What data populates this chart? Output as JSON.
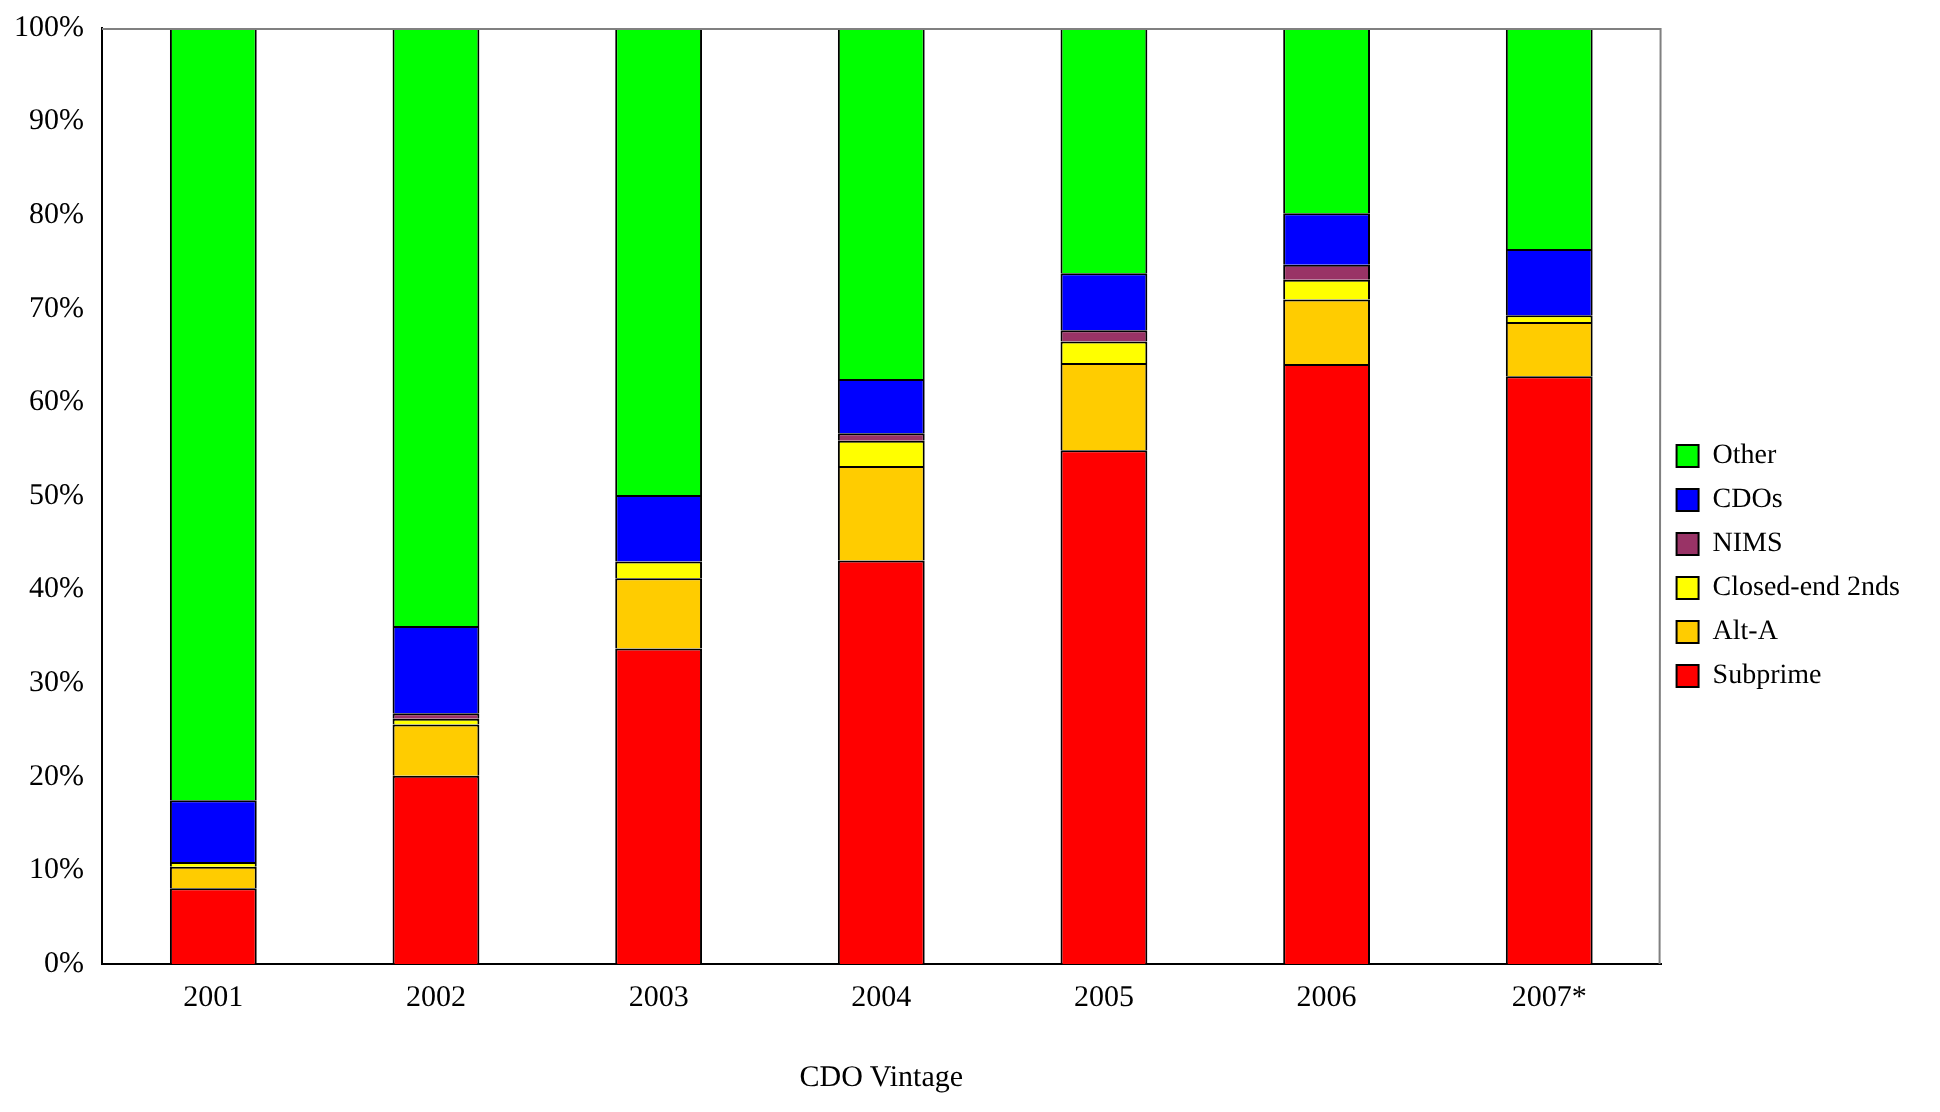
{
  "chart_data": {
    "type": "bar",
    "stacked": true,
    "xlabel": "CDO Vintage",
    "categories": [
      "2001",
      "2002",
      "2003",
      "2004",
      "2005",
      "2006",
      "2007*"
    ],
    "series": [
      {
        "name": "Subprime",
        "color": "#ff0000",
        "values": [
          8.1,
          20.1,
          33.7,
          43.1,
          54.9,
          64.1,
          62.8
        ]
      },
      {
        "name": "Alt-A",
        "color": "#ffcc00",
        "values": [
          2.3,
          5.5,
          7.5,
          10.1,
          9.3,
          6.9,
          5.8
        ]
      },
      {
        "name": "Closed-end 2nds",
        "color": "#ffff00",
        "values": [
          0.5,
          0.6,
          1.8,
          2.7,
          2.3,
          2.1,
          0.7
        ]
      },
      {
        "name": "NIMS",
        "color": "#993366",
        "values": [
          0,
          0.6,
          0,
          0.8,
          1.2,
          1.6,
          0
        ]
      },
      {
        "name": "CDOs",
        "color": "#0000ff",
        "values": [
          6.6,
          9.3,
          7.1,
          5.8,
          6.1,
          5.5,
          7.1
        ]
      },
      {
        "name": "Other",
        "color": "#00ff00",
        "values": [
          82.5,
          63.9,
          49.9,
          37.5,
          26.2,
          19.8,
          23.6
        ]
      }
    ],
    "ylim": [
      0,
      100
    ],
    "yticks": [
      {
        "value": 0,
        "label": "0%"
      },
      {
        "value": 10,
        "label": "10%"
      },
      {
        "value": 20,
        "label": "20%"
      },
      {
        "value": 30,
        "label": "30%"
      },
      {
        "value": 40,
        "label": "40%"
      },
      {
        "value": 50,
        "label": "50%"
      },
      {
        "value": 60,
        "label": "60%"
      },
      {
        "value": 70,
        "label": "70%"
      },
      {
        "value": 80,
        "label": "80%"
      },
      {
        "value": 90,
        "label": "90%"
      },
      {
        "value": 100,
        "label": "100%"
      }
    ],
    "grid": false,
    "legend": "right"
  }
}
